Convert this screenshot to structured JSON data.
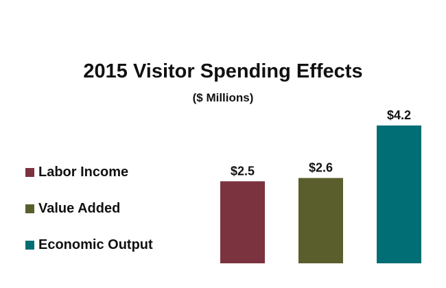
{
  "chart_data": {
    "type": "bar",
    "title": "2015 Visitor Spending Effects",
    "subtitle": "($ Millions)",
    "categories": [
      "Labor Income",
      "Value Added",
      "Economic Output"
    ],
    "values": [
      2.5,
      2.6,
      4.2
    ],
    "value_labels": [
      "$2.5",
      "$2.6",
      "$4.2"
    ],
    "colors": [
      "#7b3340",
      "#5a5e2c",
      "#006e74"
    ],
    "xlabel": "",
    "ylabel": "",
    "ylim": [
      0,
      4.2
    ],
    "grid": false,
    "legend_position": "left"
  }
}
